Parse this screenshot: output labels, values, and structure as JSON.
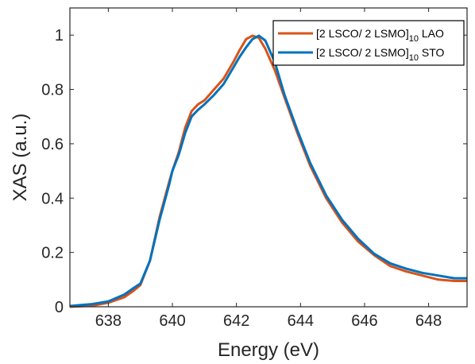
{
  "chart_data": {
    "type": "line",
    "xlabel": "Energy (eV)",
    "ylabel": "XAS (a.u.)",
    "xlim": [
      636.8,
      649.2
    ],
    "ylim": [
      0,
      1.1
    ],
    "xticks": [
      638,
      640,
      642,
      644,
      646,
      648
    ],
    "yticks": [
      0,
      0.2,
      0.4,
      0.6,
      0.8,
      1
    ],
    "ytick_labels": [
      "0",
      "0.2",
      "0.4",
      "0.6",
      "0.8",
      "1"
    ],
    "grid": false,
    "legend_position": "top-right",
    "series": [
      {
        "name": "[2 LSCO/ 2 LSMO]10 LAO",
        "legend": {
          "main": "[2 LSCO/ 2 LSMO]",
          "sub": "10",
          "suffix": " LAO"
        },
        "color": "#d95319",
        "x": [
          636.8,
          637.5,
          638.0,
          638.5,
          638.8,
          639.0,
          639.3,
          639.6,
          639.9,
          640.0,
          640.2,
          640.4,
          640.6,
          640.8,
          641.0,
          641.3,
          641.6,
          641.9,
          642.1,
          642.3,
          642.5,
          642.7,
          642.9,
          643.2,
          643.5,
          643.9,
          644.3,
          644.8,
          645.3,
          645.8,
          646.3,
          646.8,
          647.3,
          647.8,
          648.3,
          648.8,
          649.2
        ],
        "y": [
          0.0,
          0.004,
          0.015,
          0.035,
          0.06,
          0.08,
          0.17,
          0.33,
          0.46,
          0.5,
          0.57,
          0.66,
          0.72,
          0.745,
          0.76,
          0.8,
          0.84,
          0.9,
          0.945,
          0.985,
          0.998,
          0.99,
          0.95,
          0.87,
          0.77,
          0.64,
          0.52,
          0.4,
          0.31,
          0.24,
          0.19,
          0.15,
          0.13,
          0.115,
          0.1,
          0.095,
          0.095
        ]
      },
      {
        "name": "[2 LSCO/ 2 LSMO]10 STO",
        "legend": {
          "main": "[2 LSCO/ 2 LSMO]",
          "sub": "10",
          "suffix": " STO"
        },
        "color": "#0072bd",
        "x": [
          636.8,
          637.5,
          638.0,
          638.5,
          638.8,
          639.0,
          639.3,
          639.6,
          639.9,
          640.0,
          640.2,
          640.4,
          640.6,
          640.8,
          641.0,
          641.3,
          641.6,
          641.9,
          642.1,
          642.3,
          642.5,
          642.7,
          642.9,
          643.2,
          643.5,
          643.9,
          644.3,
          644.8,
          645.3,
          645.8,
          646.3,
          646.8,
          647.3,
          647.8,
          648.3,
          648.8,
          649.2
        ],
        "y": [
          0.003,
          0.01,
          0.02,
          0.045,
          0.07,
          0.085,
          0.17,
          0.32,
          0.45,
          0.5,
          0.56,
          0.64,
          0.7,
          0.725,
          0.745,
          0.78,
          0.82,
          0.88,
          0.92,
          0.955,
          0.985,
          0.998,
          0.98,
          0.9,
          0.78,
          0.65,
          0.53,
          0.41,
          0.32,
          0.25,
          0.195,
          0.16,
          0.14,
          0.125,
          0.115,
          0.105,
          0.105
        ]
      }
    ]
  }
}
